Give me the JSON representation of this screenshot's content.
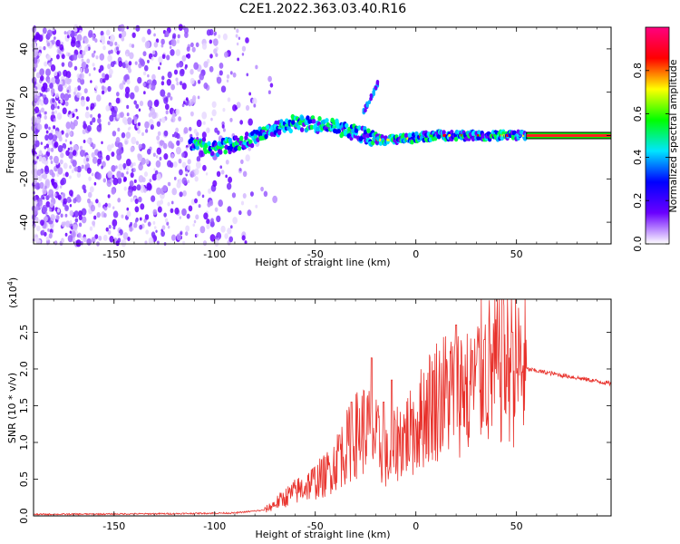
{
  "title": "C2E1.2022.363.03.40.R16",
  "chart_data": [
    {
      "type": "heatmap",
      "xlabel": "Height of straight line (km)",
      "ylabel": "Frequency (Hz)",
      "xlim": [
        -190,
        97
      ],
      "ylim": [
        -50,
        50
      ],
      "x_ticks": [
        -150,
        -100,
        -50,
        0,
        50
      ],
      "y_ticks": [
        -40,
        -20,
        0,
        20,
        40
      ],
      "colorbar": {
        "label": "Normalized spectral amplitude",
        "range": [
          0,
          1
        ],
        "ticks": [
          0.0,
          0.2,
          0.4,
          0.6,
          0.8
        ],
        "colormap": [
          "#ffffff",
          "#6a00ff",
          "#0000ff",
          "#00e5ff",
          "#00ff00",
          "#ffff00",
          "#ff0000",
          "#ff0080"
        ]
      },
      "feature_trace": [
        [
          -110,
          -4
        ],
        [
          -100,
          -6
        ],
        [
          -90,
          -4
        ],
        [
          -80,
          -1
        ],
        [
          -70,
          3
        ],
        [
          -60,
          6
        ],
        [
          -50,
          5
        ],
        [
          -40,
          4
        ],
        [
          -35,
          2
        ],
        [
          -25,
          0
        ],
        [
          -20,
          -2
        ],
        [
          -10,
          -2
        ],
        [
          0,
          -1
        ],
        [
          10,
          0
        ],
        [
          20,
          0
        ],
        [
          30,
          0
        ],
        [
          40,
          0
        ],
        [
          50,
          0
        ],
        [
          60,
          0
        ],
        [
          95,
          0
        ]
      ],
      "branch_trace": [
        [
          -26,
          11
        ],
        [
          -22,
          18
        ],
        [
          -19,
          24
        ]
      ]
    },
    {
      "type": "line",
      "xlabel": "Height of straight line (km)",
      "ylabel": "SNR (10 * v/v)",
      "yscale_label": "(x10",
      "yscale_exp": "4",
      "yscale_close": ")",
      "xlim": [
        -190,
        97
      ],
      "ylim": [
        0,
        2.95
      ],
      "x_ticks": [
        -150,
        -100,
        -50,
        0,
        50
      ],
      "y_ticks": [
        "0.0",
        "0.5",
        "1.0",
        "1.5",
        "2.0",
        "2.5"
      ],
      "color": "#e8302a",
      "envelope_points": [
        [
          -190,
          0.02
        ],
        [
          -120,
          0.03
        ],
        [
          -90,
          0.04
        ],
        [
          -75,
          0.08
        ],
        [
          -62,
          0.3
        ],
        [
          -55,
          0.4
        ],
        [
          -45,
          0.55
        ],
        [
          -38,
          0.8
        ],
        [
          -30,
          1.1
        ],
        [
          -25,
          1.2
        ],
        [
          -20,
          1.05
        ],
        [
          -13,
          0.7
        ],
        [
          -10,
          1.0
        ],
        [
          0,
          1.2
        ],
        [
          5,
          1.45
        ],
        [
          10,
          1.6
        ],
        [
          18,
          1.7
        ],
        [
          25,
          1.8
        ],
        [
          35,
          1.95
        ],
        [
          45,
          2.05
        ],
        [
          55,
          2.0
        ],
        [
          65,
          1.95
        ],
        [
          80,
          1.88
        ],
        [
          97,
          1.8
        ]
      ],
      "spikes": [
        [
          -38,
          1.1
        ],
        [
          -32,
          1.55
        ],
        [
          -22,
          2.15
        ],
        [
          -16,
          1.55
        ],
        [
          -12,
          1.85
        ],
        [
          -2,
          1.45
        ],
        [
          20,
          2.6
        ],
        [
          28,
          2.25
        ],
        [
          34,
          2.4
        ],
        [
          43,
          2.95
        ],
        [
          48,
          2.5
        ]
      ]
    }
  ]
}
